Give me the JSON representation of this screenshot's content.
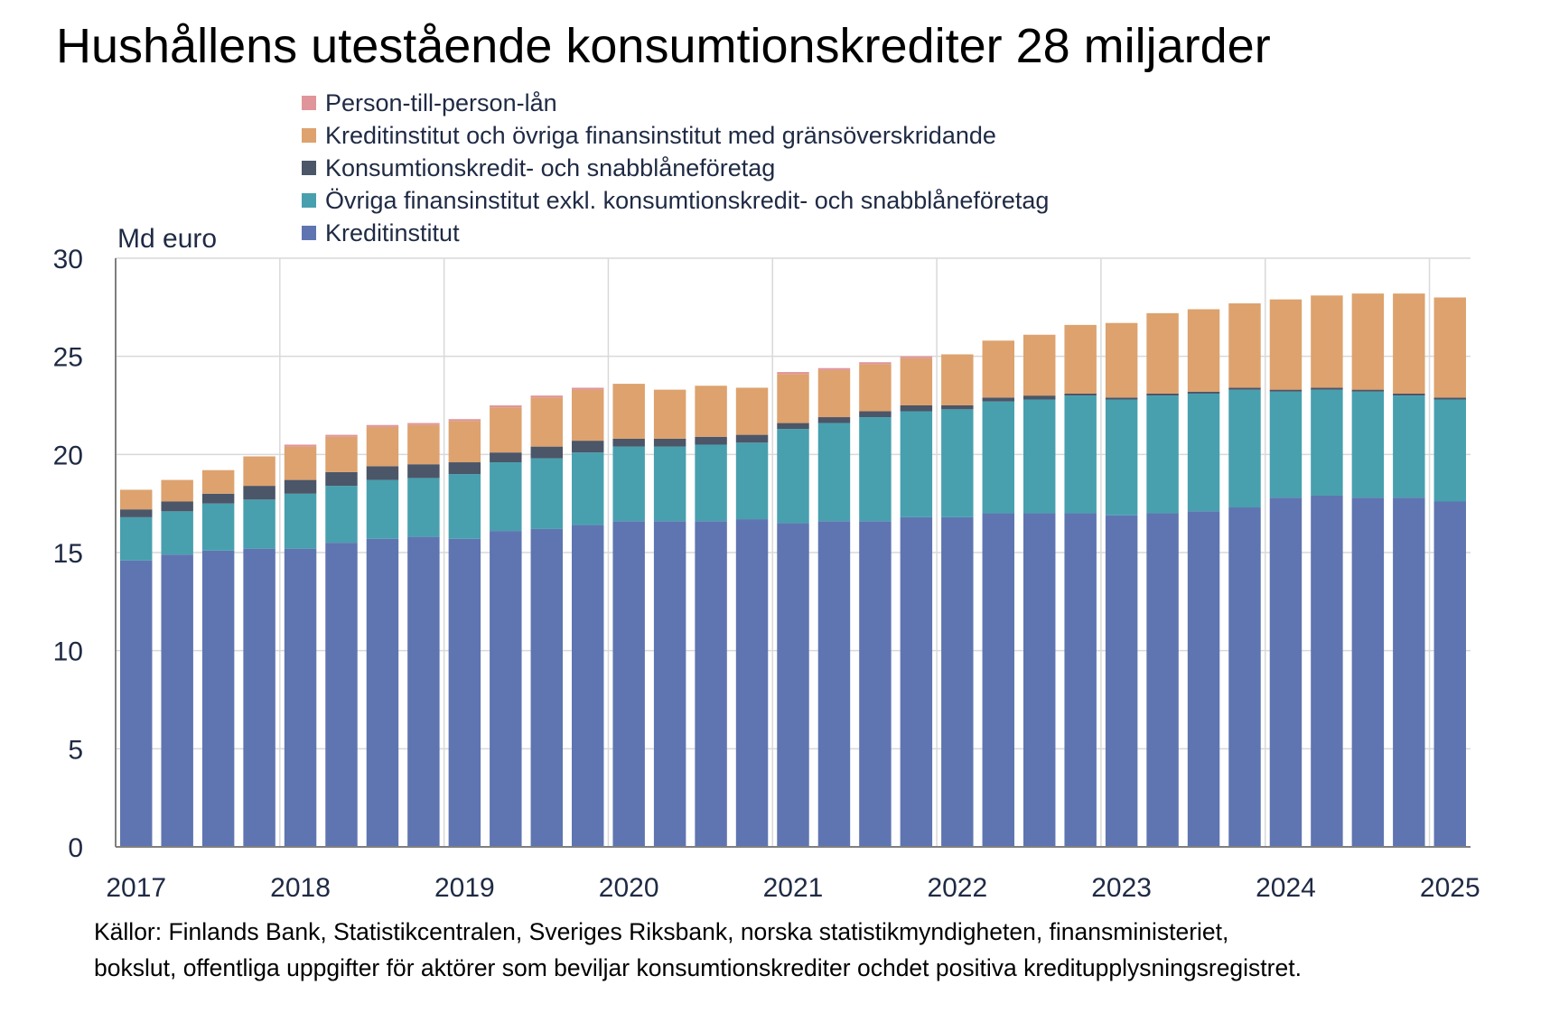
{
  "colors": {
    "p2p": "#e0959b",
    "cross_border": "#dda26e",
    "consumer_credit": "#4b5668",
    "other_financial": "#48a0ae",
    "credit_institutions": "#5f75b1"
  },
  "chart_data": {
    "type": "bar",
    "stacked": true,
    "title": "Hushållens utestående konsumtionskrediter 28 miljarder",
    "ylabel": "Md euro",
    "ylim": [
      0,
      30
    ],
    "yticks": [
      "0",
      "5",
      "10",
      "15",
      "20",
      "25",
      "30"
    ],
    "xtick_labels": [
      "2017",
      "2018",
      "2019",
      "2020",
      "2021",
      "2022",
      "2023",
      "2024",
      "2025"
    ],
    "grid": "vertical lines at year boundaries, horizontal lines at every 5",
    "legend_position": "top",
    "categories": [
      "2017Q1",
      "2017Q2",
      "2017Q3",
      "2017Q4",
      "2018Q1",
      "2018Q2",
      "2018Q3",
      "2018Q4",
      "2019Q1",
      "2019Q2",
      "2019Q3",
      "2019Q4",
      "2020Q1",
      "2020Q2",
      "2020Q3",
      "2020Q4",
      "2021Q1",
      "2021Q2",
      "2021Q3",
      "2021Q4",
      "2022Q1",
      "2022Q2",
      "2022Q3",
      "2022Q4",
      "2023Q1",
      "2023Q2",
      "2023Q3",
      "2023Q4",
      "2024Q1",
      "2024Q2",
      "2024Q3",
      "2024Q4",
      "2025Q1"
    ],
    "series": [
      {
        "name": "Kreditinstitut",
        "color_key": "credit_institutions",
        "values": [
          14.6,
          14.9,
          15.1,
          15.2,
          15.2,
          15.5,
          15.7,
          15.8,
          15.7,
          16.1,
          16.2,
          16.4,
          16.6,
          16.6,
          16.6,
          16.7,
          16.5,
          16.6,
          16.6,
          16.8,
          16.8,
          17.0,
          17.0,
          17.0,
          16.9,
          17.0,
          17.1,
          17.3,
          17.8,
          17.9,
          17.8,
          17.8,
          17.6
        ]
      },
      {
        "name": "Övriga finansinstitut exkl. konsumtionskredit- och snabblåneföretag",
        "color_key": "other_financial",
        "values": [
          2.2,
          2.2,
          2.4,
          2.5,
          2.8,
          2.9,
          3.0,
          3.0,
          3.3,
          3.5,
          3.6,
          3.7,
          3.8,
          3.8,
          3.9,
          3.9,
          4.8,
          5.0,
          5.3,
          5.4,
          5.5,
          5.7,
          5.8,
          6.0,
          5.9,
          6.0,
          6.0,
          6.0,
          5.4,
          5.4,
          5.4,
          5.2,
          5.2
        ]
      },
      {
        "name": "Konsumtionskredit- och snabblåneföretag",
        "color_key": "consumer_credit",
        "values": [
          0.4,
          0.5,
          0.5,
          0.7,
          0.7,
          0.7,
          0.7,
          0.7,
          0.6,
          0.5,
          0.6,
          0.6,
          0.4,
          0.4,
          0.4,
          0.4,
          0.3,
          0.3,
          0.3,
          0.3,
          0.2,
          0.2,
          0.2,
          0.1,
          0.1,
          0.1,
          0.1,
          0.1,
          0.1,
          0.1,
          0.1,
          0.1,
          0.1
        ]
      },
      {
        "name": "Kreditinstitut och övriga finansinstitut med gränsöverskridande",
        "color_key": "cross_border",
        "values": [
          1.0,
          1.1,
          1.2,
          1.5,
          1.7,
          1.8,
          2.0,
          2.0,
          2.1,
          2.3,
          2.5,
          2.6,
          2.8,
          2.5,
          2.6,
          2.4,
          2.5,
          2.4,
          2.4,
          2.4,
          2.6,
          2.9,
          3.1,
          3.5,
          3.8,
          4.1,
          4.2,
          4.3,
          4.6,
          4.7,
          4.9,
          5.1,
          5.1
        ]
      },
      {
        "name": "Person-till-person-lån",
        "color_key": "p2p",
        "values": [
          0.0,
          0.0,
          0.0,
          0.0,
          0.1,
          0.1,
          0.1,
          0.1,
          0.1,
          0.1,
          0.1,
          0.1,
          0.0,
          0.0,
          0.0,
          0.0,
          0.1,
          0.1,
          0.1,
          0.1,
          0.0,
          0.0,
          0.0,
          0.0,
          0.0,
          0.0,
          0.0,
          0.0,
          0.0,
          0.0,
          0.0,
          0.0,
          0.0
        ]
      }
    ]
  },
  "legend": [
    {
      "label": "Person-till-person-lån",
      "color_key": "p2p"
    },
    {
      "label": "Kreditinstitut och övriga finansinstitut med gränsöverskridande",
      "color_key": "cross_border"
    },
    {
      "label": "Konsumtionskredit- och snabblåneföretag",
      "color_key": "consumer_credit"
    },
    {
      "label": "Övriga finansinstitut exkl. konsumtionskredit- och snabblåneföretag",
      "color_key": "other_financial"
    },
    {
      "label": "Kreditinstitut",
      "color_key": "credit_institutions"
    }
  ],
  "source": {
    "line1": "Källor: Finlands Bank, Statistikcentralen, Sveriges Riksbank, norska statistikmyndigheten, finansministeriet,",
    "line2": "bokslut, offentliga uppgifter för aktörer som beviljar konsumtionskrediter ochdet positiva kreditupplysningsregistret."
  }
}
